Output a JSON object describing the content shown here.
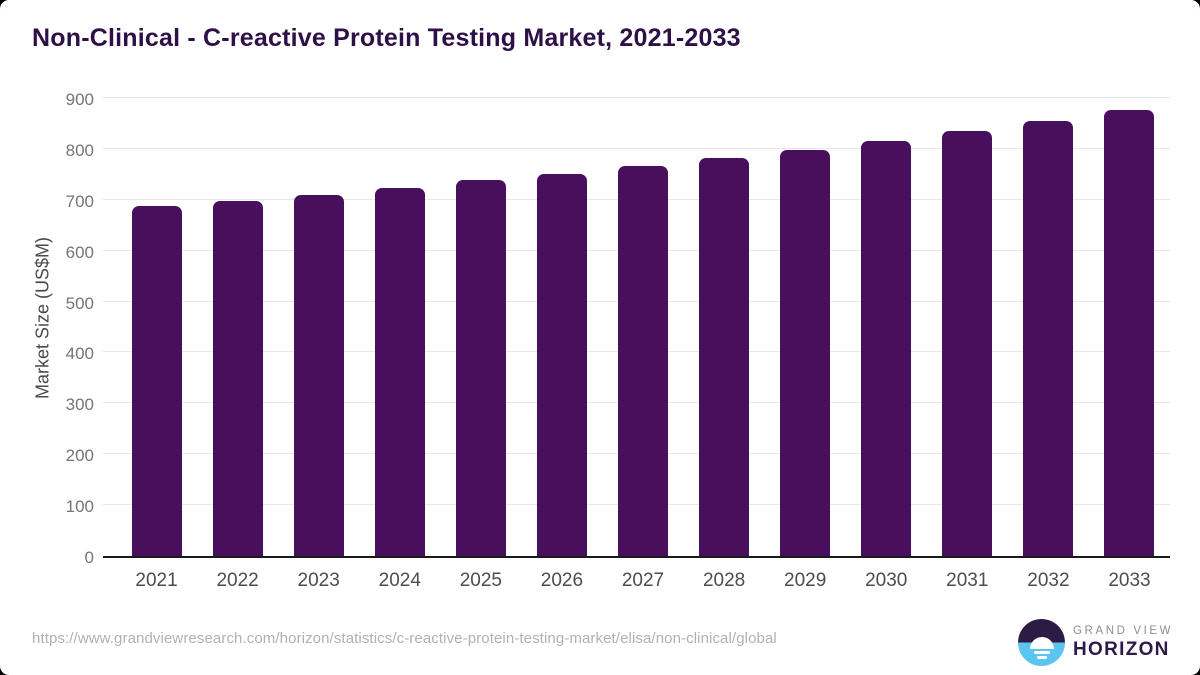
{
  "page": {
    "title": "Non-Clinical - C-reactive Protein Testing Market, 2021-2033"
  },
  "chart_data": {
    "type": "bar",
    "title": "Non-Clinical - C-reactive Protein Testing Market, 2021-2033",
    "categories": [
      "2021",
      "2022",
      "2023",
      "2024",
      "2025",
      "2026",
      "2027",
      "2028",
      "2029",
      "2030",
      "2031",
      "2032",
      "2033"
    ],
    "values": [
      687,
      698,
      710,
      724,
      738,
      751,
      766,
      782,
      798,
      815,
      835,
      855,
      876
    ],
    "xlabel": "",
    "ylabel": "Market Size (US$M)",
    "ylim": [
      0,
      900
    ],
    "yticks": [
      0,
      100,
      200,
      300,
      400,
      500,
      600,
      700,
      800,
      900
    ],
    "grid": true,
    "legend_position": "none",
    "bar_color": "#48105c"
  },
  "footer": {
    "source_url": "https://www.grandviewresearch.com/horizon/statistics/c-reactive-protein-testing-market/elisa/non-clinical/global",
    "brand_top": "GRAND VIEW",
    "brand_bottom": "HORIZON"
  },
  "colors": {
    "title_text": "#2e1047",
    "bar": "#48105c",
    "gridline": "#e8e8e8",
    "axis_line": "#1a1a1a",
    "tick_text": "#757575",
    "xlabel_text": "#4d4d4d",
    "url_text": "#b1b1b1",
    "logo_purple": "#2b1b45",
    "logo_blue": "#59c5f0"
  }
}
